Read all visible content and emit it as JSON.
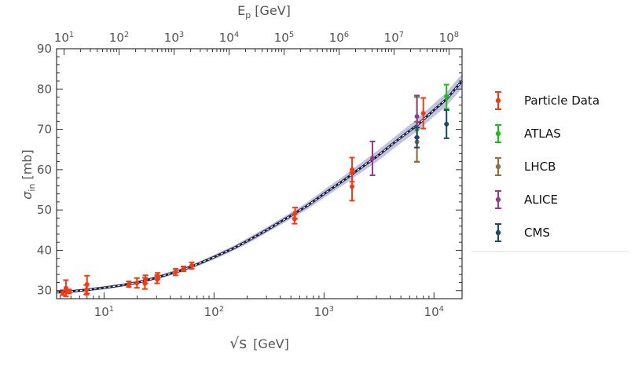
{
  "chart_data": {
    "type": "scatter",
    "top_axis_label": {
      "main": "E",
      "sub": "p",
      "unit": "[GeV]"
    },
    "xlabel": {
      "main": "√s",
      "unit": "[GeV]"
    },
    "ylabel": {
      "main": "σ",
      "sub": "in",
      "unit": "[mb]"
    },
    "x_scale": "log",
    "xlim": [
      3.7,
      18000
    ],
    "ylim": [
      28,
      90
    ],
    "yticks": [
      30,
      40,
      50,
      60,
      70,
      80,
      90
    ],
    "xticks": [
      {
        "value": 10,
        "base": "10",
        "exp": "1"
      },
      {
        "value": 100,
        "base": "10",
        "exp": "2"
      },
      {
        "value": 1000,
        "base": "10",
        "exp": "3"
      },
      {
        "value": 10000,
        "base": "10",
        "exp": "4"
      }
    ],
    "top_ticks": [
      {
        "value": 10,
        "base": "10",
        "exp": "1"
      },
      {
        "value": 100,
        "base": "10",
        "exp": "2"
      },
      {
        "value": 1000,
        "base": "10",
        "exp": "3"
      },
      {
        "value": 10000,
        "base": "10",
        "exp": "4"
      },
      {
        "value": 100000,
        "base": "10",
        "exp": "5"
      },
      {
        "value": 1000000,
        "base": "10",
        "exp": "6"
      },
      {
        "value": 10000000,
        "base": "10",
        "exp": "7"
      },
      {
        "value": 100000000,
        "base": "10",
        "exp": "8"
      }
    ],
    "legend_position": "right",
    "fit_curve": {
      "x": [
        3.7,
        5,
        7,
        10,
        15,
        20,
        30,
        50,
        70,
        100,
        150,
        200,
        300,
        500,
        700,
        1000,
        1500,
        2000,
        3000,
        5000,
        7000,
        10000,
        13000,
        18000
      ],
      "y": [
        29.6,
        29.8,
        30.2,
        30.7,
        31.4,
        32.0,
        33.2,
        35.0,
        36.5,
        38.3,
        40.5,
        42.3,
        45.0,
        48.6,
        51.0,
        54.0,
        57.3,
        59.8,
        63.2,
        68.0,
        71.0,
        74.8,
        77.5,
        82.0
      ],
      "band_halfwidth": [
        0.4,
        0.4,
        0.4,
        0.4,
        0.4,
        0.4,
        0.5,
        0.5,
        0.5,
        0.6,
        0.6,
        0.7,
        0.7,
        0.8,
        0.9,
        1.0,
        1.1,
        1.2,
        1.3,
        1.4,
        1.5,
        1.6,
        1.7,
        1.8
      ],
      "line_color": "#1b1b3a",
      "band_color": "#8a8fc8"
    },
    "series": [
      {
        "name": "Particle Data",
        "color": "#f03c14",
        "points": [
          {
            "x": 4.2,
            "y": 29.5,
            "err": 0.6
          },
          {
            "x": 4.5,
            "y": 30.6,
            "err": 2.0
          },
          {
            "x": 4.8,
            "y": 29.8,
            "err": 0.5
          },
          {
            "x": 6.9,
            "y": 30.2,
            "err": 1.2
          },
          {
            "x": 7.0,
            "y": 31.5,
            "err": 2.2
          },
          {
            "x": 16.8,
            "y": 31.6,
            "err": 0.7
          },
          {
            "x": 19.9,
            "y": 31.9,
            "err": 1.2
          },
          {
            "x": 23.5,
            "y": 31.8,
            "err": 1.4
          },
          {
            "x": 23.8,
            "y": 32.8,
            "err": 1.0
          },
          {
            "x": 30.4,
            "y": 32.8,
            "err": 1.0
          },
          {
            "x": 30.7,
            "y": 33.6,
            "err": 0.8
          },
          {
            "x": 44.7,
            "y": 34.6,
            "err": 0.8
          },
          {
            "x": 52.8,
            "y": 35.4,
            "err": 0.6
          },
          {
            "x": 62.7,
            "y": 36.2,
            "err": 0.8
          },
          {
            "x": 540,
            "y": 47.8,
            "err": 1.2
          },
          {
            "x": 546,
            "y": 49.2,
            "err": 1.4
          },
          {
            "x": 1800,
            "y": 55.8,
            "err": 3.5
          },
          {
            "x": 1800,
            "y": 60.0,
            "err": 3.0
          },
          {
            "x": 8000,
            "y": 74.0,
            "err": 3.8
          }
        ]
      },
      {
        "name": "ATLAS",
        "color": "#1fba1f",
        "points": [
          {
            "x": 7000,
            "y": 70.0,
            "err": 8.0
          },
          {
            "x": 13000,
            "y": 78.1,
            "err": 3.0
          }
        ]
      },
      {
        "name": "LHCB",
        "color": "#9a6a3a",
        "points": [
          {
            "x": 7000,
            "y": 66.9,
            "err": 5.0
          }
        ]
      },
      {
        "name": "ALICE",
        "color": "#9a3a86",
        "points": [
          {
            "x": 2760,
            "y": 62.8,
            "err": 4.2
          },
          {
            "x": 7000,
            "y": 73.2,
            "err": 5.2
          }
        ]
      },
      {
        "name": "CMS",
        "color": "#1a4a66",
        "points": [
          {
            "x": 7000,
            "y": 68.0,
            "err": 2.5
          },
          {
            "x": 13000,
            "y": 71.3,
            "err": 3.5
          }
        ]
      }
    ]
  }
}
